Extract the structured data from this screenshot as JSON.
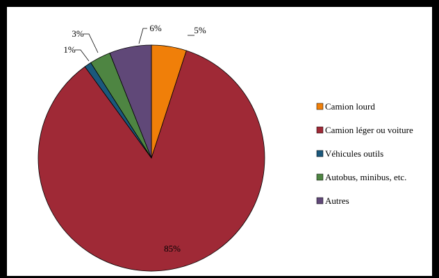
{
  "chart_data": {
    "type": "pie",
    "title": "",
    "categories": [
      "Camion lourd",
      "Camion léger ou voiture",
      "Véhicules outils",
      "Autobus, minibus, etc.",
      "Autres"
    ],
    "values": [
      5,
      85,
      1,
      3,
      6
    ],
    "data_labels": [
      "5%",
      "85%",
      "1%",
      "3%",
      "6%"
    ],
    "colors": [
      "#F07F09",
      "#9F2936",
      "#1B587C",
      "#4E8542",
      "#604878"
    ],
    "start_angle_deg": 0,
    "direction": "clockwise",
    "legend_position": "right",
    "grid": false
  }
}
